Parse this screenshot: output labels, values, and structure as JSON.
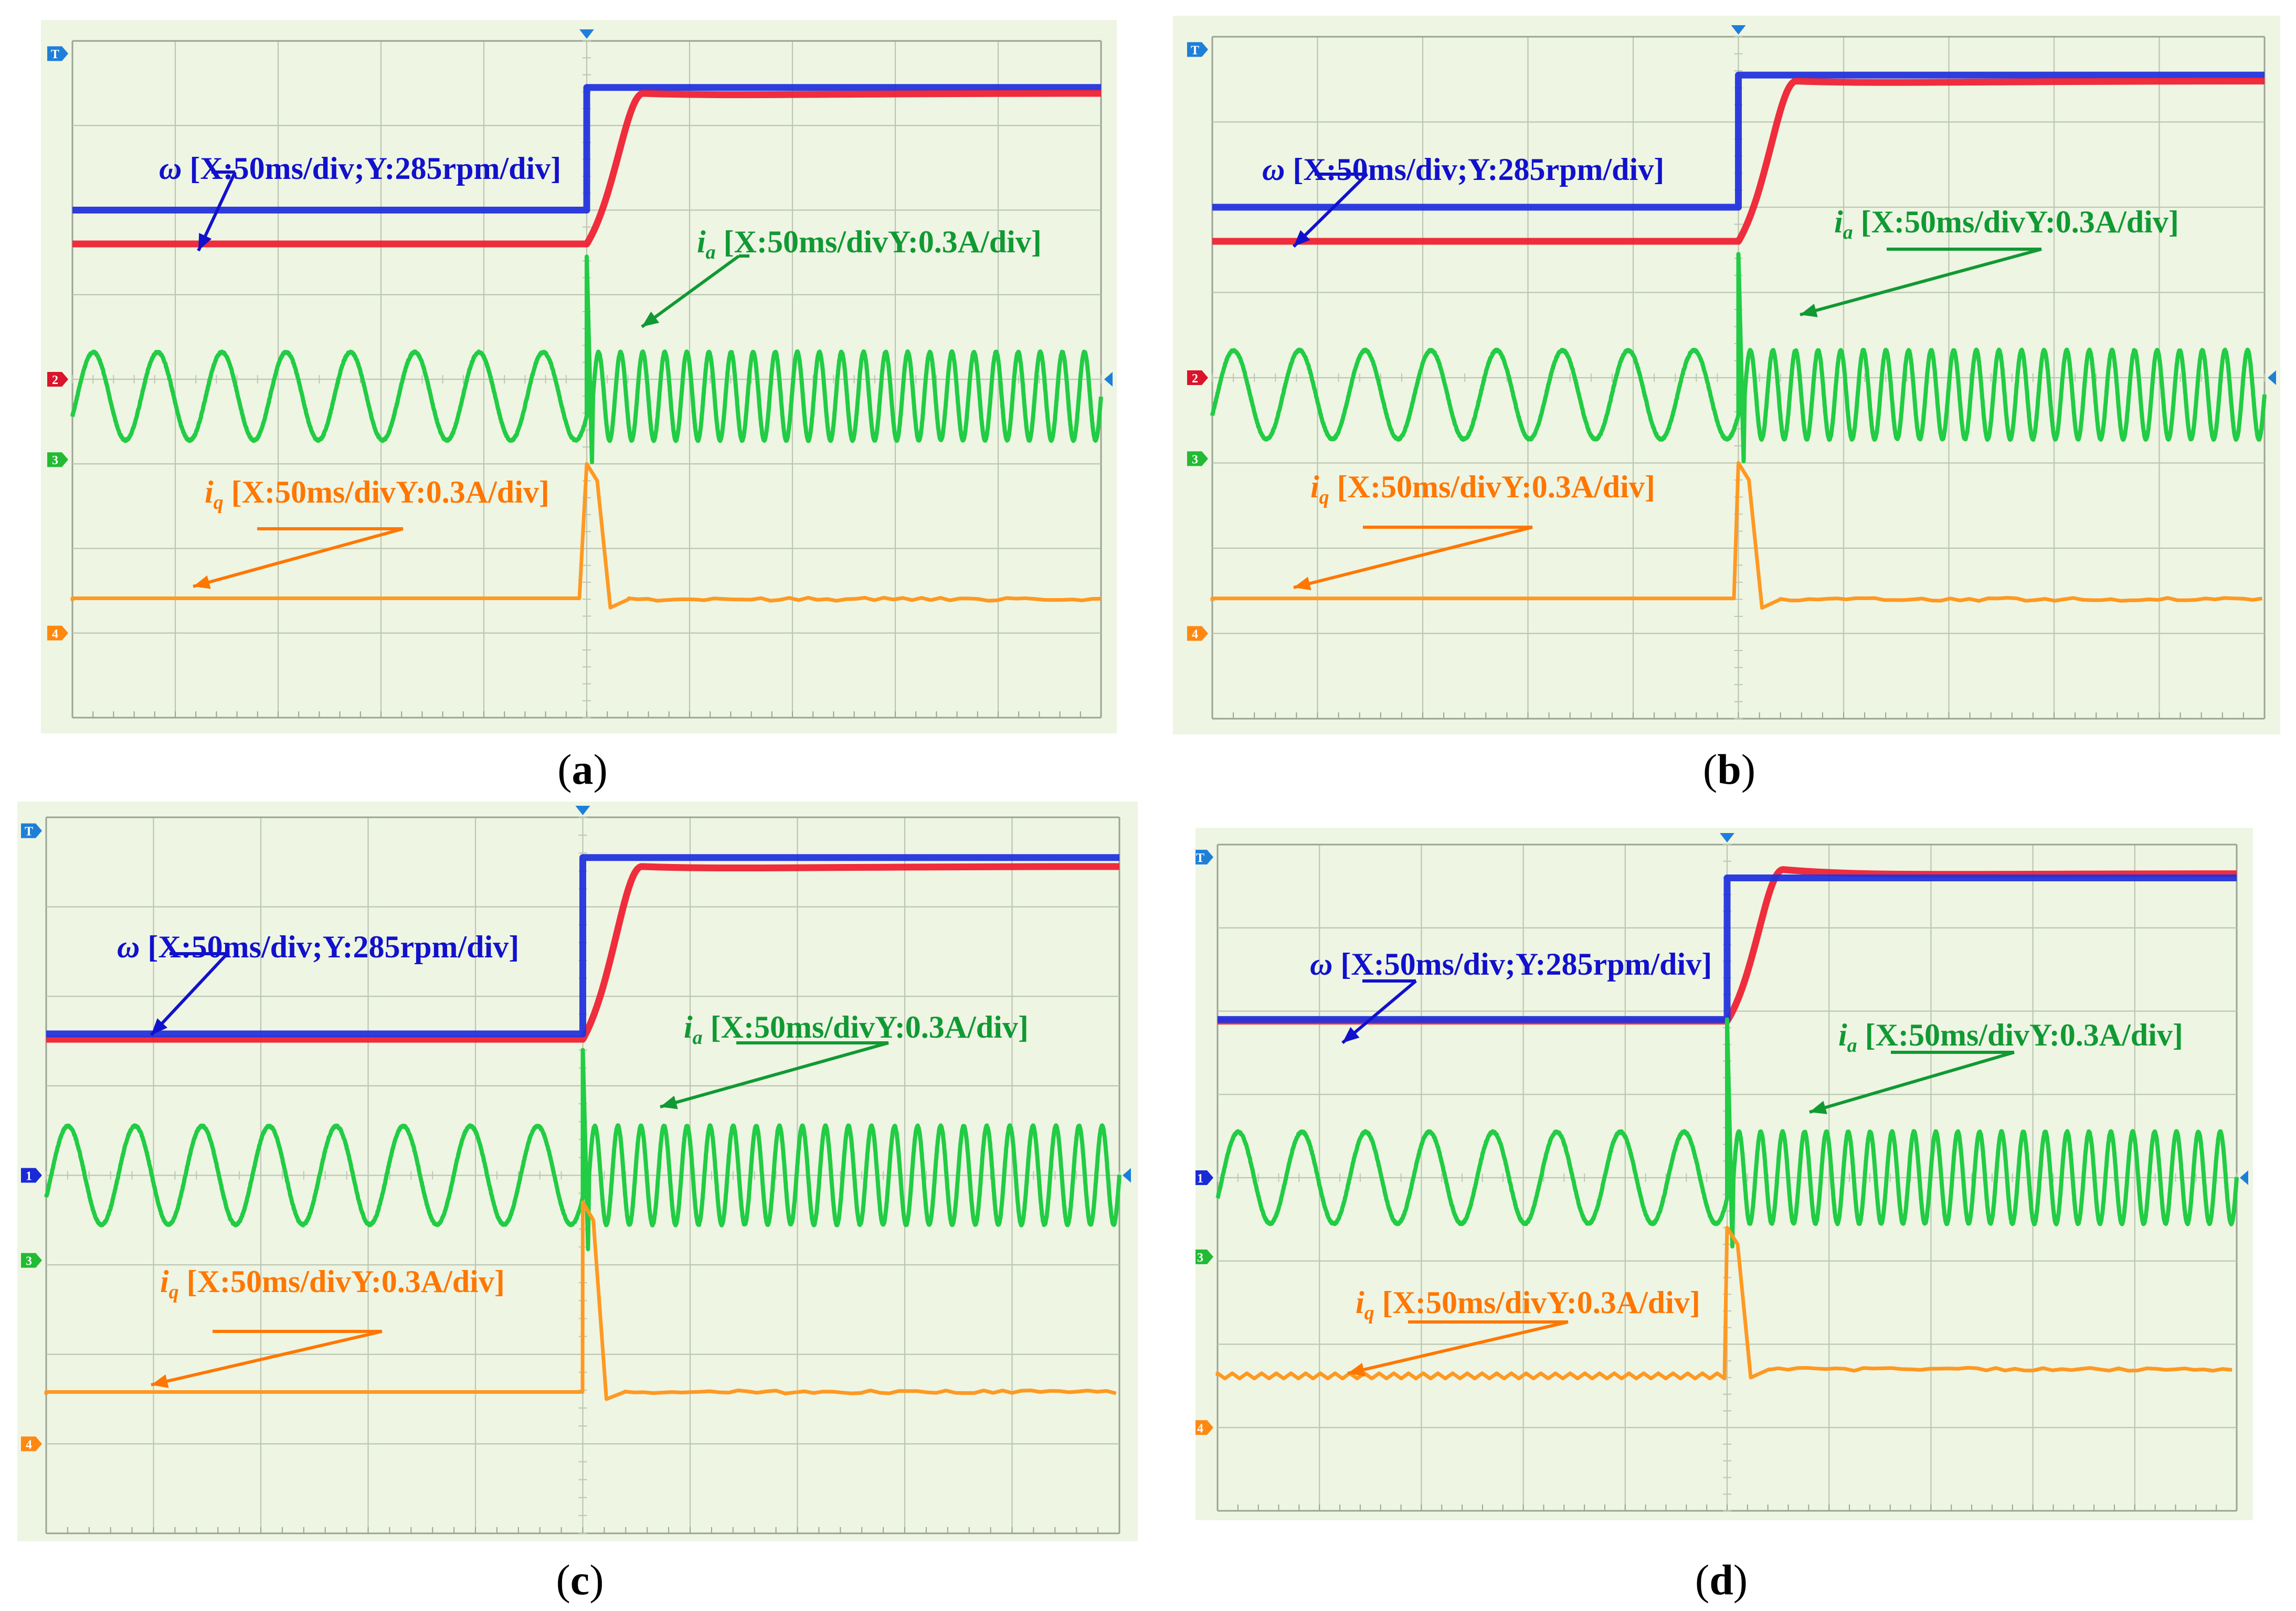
{
  "figure": {
    "colors": {
      "background": "#eef5e3",
      "grid": "#bcc6b2",
      "grid_border": "#9aa494",
      "speed_measured": "#ee2233",
      "speed_reference": "#2233dd",
      "phase_current": "#22cc44",
      "q_current": "#ff9922",
      "label_blue": "#1111cc",
      "label_green": "#119933",
      "label_orange": "#ff7700",
      "marker_T": "#1e7fd8",
      "marker_1": "#1a2ad6",
      "marker_2": "#d9142b",
      "marker_3": "#22bb33",
      "marker_4": "#ff8811"
    }
  },
  "chart_data": [
    {
      "type": "line",
      "panel": "a",
      "caption": "a",
      "grid": "10x8",
      "x_unit": "ms",
      "time_per_div": 50,
      "step_time_div": 5.0,
      "trace_order": [
        "speed_reference",
        "speed_measured"
      ],
      "markers": [
        "T",
        "2",
        "3",
        "4"
      ],
      "annotations": {
        "omega": {
          "symbol": "ω",
          "text": " [X:50ms/div;Y:285rpm/div]",
          "underline": true
        },
        "ia": {
          "symbol": "i",
          "sub": "a",
          "text": " [X:50ms/divY:0.3A/div]"
        },
        "iq": {
          "symbol": "i",
          "sub": "q",
          "text": " [X:50ms/divY:0.3A/div]"
        }
      },
      "series": [
        {
          "name": "speed_reference",
          "color": "blue",
          "y_before": 6.0,
          "y_after": 7.45
        },
        {
          "name": "speed_measured",
          "color": "red",
          "y_before": 5.6,
          "y_after": 7.38,
          "overshoot": 0.0
        },
        {
          "name": "phase_current",
          "color": "green",
          "y_center": 3.8,
          "amplitude": 0.52,
          "cycles_before": 8,
          "cycles_after": 23,
          "step_peak": 5.45
        },
        {
          "name": "q_current",
          "color": "orange",
          "y_before": 1.38,
          "y_after": 1.4,
          "step_peak": 3.0,
          "dip": 1.3
        }
      ]
    },
    {
      "type": "line",
      "panel": "b",
      "caption": "b",
      "grid": "10x8",
      "x_unit": "ms",
      "time_per_div": 50,
      "step_time_div": 5.0,
      "trace_order": [
        "speed_reference",
        "speed_measured"
      ],
      "markers": [
        "T",
        "2",
        "3",
        "4"
      ],
      "annotations": {
        "omega": {
          "symbol": "ω",
          "text": " [X:50ms/div;Y:285rpm/div]",
          "underline": true
        },
        "ia": {
          "symbol": "i",
          "sub": "a",
          "text": " [X:50ms/divY:0.3A/div]"
        },
        "iq": {
          "symbol": "i",
          "sub": "q",
          "text": " [X:50ms/divY:0.3A/div]"
        }
      },
      "series": [
        {
          "name": "speed_reference",
          "color": "blue",
          "y_before": 6.0,
          "y_after": 7.55
        },
        {
          "name": "speed_measured",
          "color": "red",
          "y_before": 5.6,
          "y_after": 7.48,
          "overshoot": 0.0
        },
        {
          "name": "phase_current",
          "color": "green",
          "y_center": 3.8,
          "amplitude": 0.52,
          "cycles_before": 8,
          "cycles_after": 23,
          "step_peak": 5.45
        },
        {
          "name": "q_current",
          "color": "orange",
          "y_before": 1.38,
          "y_after": 1.4,
          "step_peak": 3.0,
          "dip": 1.3
        }
      ]
    },
    {
      "type": "line",
      "panel": "c",
      "caption": "c",
      "grid": "10x8",
      "x_unit": "ms",
      "time_per_div": 50,
      "step_time_div": 5.0,
      "trace_order": [
        "speed_measured",
        "speed_reference"
      ],
      "markers": [
        "T",
        "1",
        "3",
        "4"
      ],
      "annotations": {
        "omega": {
          "symbol": "ω",
          "text": " [X:50ms/div;Y:285rpm/div]",
          "underline": true
        },
        "ia": {
          "symbol": "i",
          "sub": "a",
          "text": " [X:50ms/divY:0.3A/div]"
        },
        "iq": {
          "symbol": "i",
          "sub": "q",
          "text": " [X:50ms/divY:0.3A/div]"
        }
      },
      "series": [
        {
          "name": "speed_reference",
          "color": "blue",
          "y_before": 5.58,
          "y_after": 7.55
        },
        {
          "name": "speed_measured",
          "color": "red",
          "y_before": 5.52,
          "y_after": 7.45,
          "overshoot": 0.0
        },
        {
          "name": "phase_current",
          "color": "green",
          "y_center": 4.0,
          "amplitude": 0.55,
          "cycles_before": 8,
          "cycles_after": 23,
          "step_peak": 5.4
        },
        {
          "name": "q_current",
          "color": "orange",
          "y_before": 1.55,
          "y_after": 1.58,
          "step_peak": 3.7,
          "dip": 1.5
        }
      ]
    },
    {
      "type": "line",
      "panel": "d",
      "caption": "d",
      "grid": "10x8",
      "x_unit": "ms",
      "time_per_div": 50,
      "step_time_div": 5.0,
      "trace_order": [
        "speed_measured",
        "speed_reference"
      ],
      "markers": [
        "T",
        "1",
        "3",
        "4"
      ],
      "annotations": {
        "omega": {
          "symbol": "ω",
          "text": " [X:50ms/div;Y:285rpm/div]",
          "underline": true
        },
        "ia": {
          "symbol": "i",
          "sub": "a",
          "text": " [X:50ms/divY:0.3A/div]"
        },
        "iq": {
          "symbol": "i",
          "sub": "q",
          "text": " [X:50ms/divY:0.3A/div]"
        }
      },
      "series": [
        {
          "name": "speed_reference",
          "color": "blue",
          "y_before": 5.9,
          "y_after": 7.6
        },
        {
          "name": "speed_measured",
          "color": "red",
          "y_before": 5.88,
          "y_after": 7.65,
          "overshoot": 0.05
        },
        {
          "name": "phase_current",
          "color": "green",
          "y_center": 4.0,
          "amplitude": 0.55,
          "cycles_before": 8,
          "cycles_after": 23,
          "step_peak": 5.9
        },
        {
          "name": "q_current",
          "color": "orange",
          "y_before": 1.62,
          "y_after": 1.7,
          "step_peak": 3.4,
          "dip": 1.6
        }
      ]
    }
  ]
}
